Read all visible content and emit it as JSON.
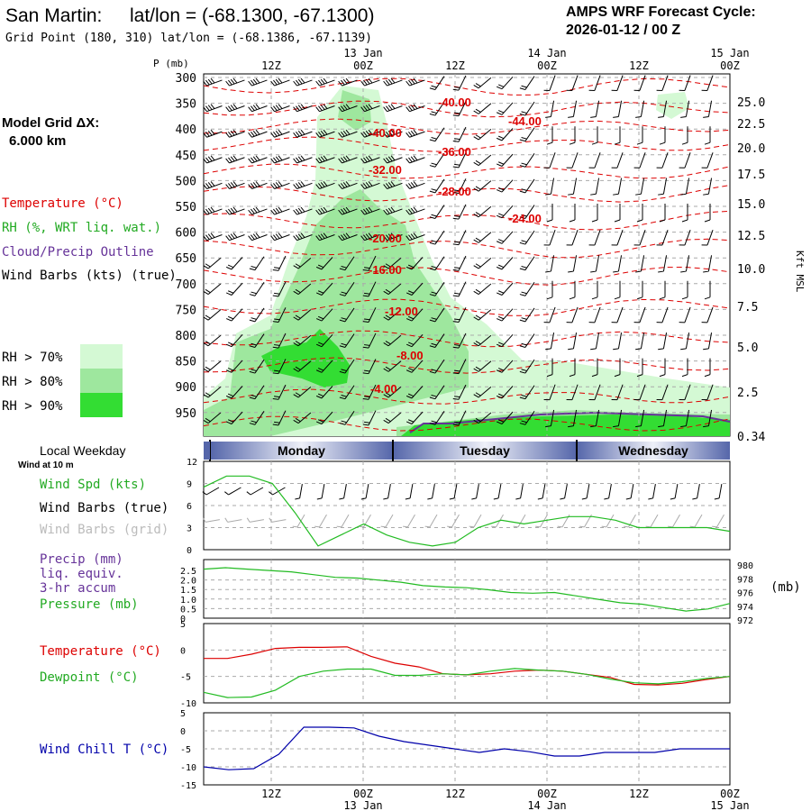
{
  "header": {
    "station": "San Martin:",
    "latlon": "lat/lon = (-68.1300, -67.1300)",
    "grid_point": "Grid Point (180, 310) lat/lon = (-68.1386, -67.1139)",
    "cycle_title": "AMPS WRF Forecast Cycle:",
    "cycle_value": "2026-01-12 / 00  Z"
  },
  "left": {
    "model_grid_label": "Model Grid ΔX:",
    "model_grid_value": "6.000 km",
    "legend_temperature": "Temperature (°C)",
    "legend_rh": "RH (%, WRT liq. wat.)",
    "legend_cloud": "Cloud/Precip Outline",
    "legend_wind": "Wind Barbs (kts) (true)",
    "rh70": "RH > 70%",
    "rh80": "RH > 80%",
    "rh90": "RH > 90%",
    "local_weekday": "Local Weekday",
    "wind_at_10m": "Wind at 10 m",
    "wind_spd_label": "Wind Spd (kts)",
    "wind_barbs_true_label": "Wind Barbs (true)",
    "wind_barbs_grid_label": "Wind Barbs (grid)",
    "precip_label_1": "Precip (mm)",
    "precip_label_2": "liq. equiv.",
    "precip_label_3": "3-hr accum",
    "pressure_label": "Pressure (mb)",
    "temperature_label": "Temperature (°C)",
    "dewpoint_label": "Dewpoint (°C)",
    "windchill_label": "Wind Chill T (°C)"
  },
  "colors": {
    "rh70": "#d4f9d4",
    "rh80": "#9ee79e",
    "rh90": "#33dd33",
    "temperature": "#dd0000",
    "green_line": "#22bb22",
    "cloud_outline": "#663399",
    "windchill": "#0000aa",
    "day_band_dark": "#5566aa",
    "grid": "#aaaaaa"
  },
  "time_axis": {
    "top_date_labels": [
      "13 Jan",
      "14 Jan",
      "15 Jan"
    ],
    "top_time_labels": [
      "12Z",
      "00Z",
      "12Z",
      "00Z",
      "12Z",
      "00Z"
    ],
    "bottom_time_labels": [
      "12Z",
      "00Z",
      "12Z",
      "00Z",
      "12Z",
      "00Z"
    ],
    "bottom_date_labels": [
      "13 Jan",
      "14 Jan",
      "15 Jan"
    ],
    "days": [
      "Monday",
      "Tuesday",
      "Wednesday"
    ]
  },
  "chart_data": [
    {
      "type": "heatmap",
      "y_axis_label": "P (mb)",
      "pressure_levels": [
        "300",
        "350",
        "400",
        "450",
        "500",
        "550",
        "600",
        "650",
        "700",
        "750",
        "800",
        "850",
        "900",
        "950"
      ],
      "right_axis_label": "Kft MSL",
      "height_ticks": [
        "25.0",
        "22.5",
        "20.0",
        "17.5",
        "15.0",
        "12.5",
        "10.0",
        "7.5",
        "5.0",
        "2.5",
        "0.34"
      ],
      "isotherm_labels": [
        "-40.00",
        "-44.00",
        "-40.00",
        "-36.00",
        "-32.00",
        "-28.00",
        "-24.00",
        "-20.00",
        "-16.00",
        "-12.00",
        "-8.00",
        "-4.00"
      ]
    },
    {
      "type": "line",
      "y_ticks": [
        "12",
        "9",
        "6",
        "3",
        "0"
      ],
      "ylim": [
        0,
        12
      ],
      "wind_speed_kts": [
        8.5,
        10,
        10,
        9,
        5,
        0.5,
        2,
        3.5,
        2,
        1,
        0.5,
        1,
        3,
        4,
        3.5,
        4,
        4.5,
        4.5,
        4,
        3,
        3,
        3,
        3,
        2.5
      ]
    },
    {
      "type": "line",
      "y_ticks_left": [
        "2.5",
        "2.0",
        "1.5",
        "1.0",
        "0.5",
        "0"
      ],
      "y_ticks_right": [
        "980",
        "978",
        "976",
        "974",
        "972"
      ],
      "right_unit": "(mb)",
      "pressure_mb": [
        979.4,
        979.6,
        979.4,
        979.2,
        979.0,
        978.6,
        978.2,
        978.1,
        977.8,
        977.5,
        977.0,
        976.8,
        976.7,
        976.4,
        976.0,
        975.9,
        976.0,
        975.5,
        975.0,
        974.5,
        974.3,
        973.8,
        973.3,
        973.6,
        974.4
      ]
    },
    {
      "type": "line",
      "y_ticks": [
        "5",
        "0",
        "-5",
        "-10"
      ],
      "ylim": [
        -10,
        5
      ],
      "temperature_c": [
        -1.6,
        -1.6,
        -0.8,
        0.3,
        0.5,
        0.5,
        0.6,
        -1.2,
        -2.5,
        -3.2,
        -4.5,
        -4.7,
        -4.5,
        -4.0,
        -3.8,
        -4.0,
        -4.6,
        -5.2,
        -6.5,
        -6.6,
        -6.3,
        -5.6,
        -5.0
      ],
      "dewpoint_c": [
        -8.0,
        -9.0,
        -8.9,
        -7.6,
        -5.0,
        -4.0,
        -3.6,
        -3.6,
        -4.8,
        -4.8,
        -4.5,
        -4.7,
        -4.0,
        -3.5,
        -3.8,
        -4.0,
        -4.6,
        -5.5,
        -6.2,
        -6.4,
        -6.0,
        -5.4,
        -5.0
      ]
    },
    {
      "type": "line",
      "y_ticks": [
        "5",
        "0",
        "-5",
        "-10",
        "-15"
      ],
      "ylim": [
        -15,
        5
      ],
      "wind_chill_c": [
        -10.0,
        -10.8,
        -10.5,
        -6.5,
        1.0,
        1.0,
        0.8,
        -1.5,
        -3.0,
        -4.0,
        -5.0,
        -6.0,
        -5.0,
        -5.8,
        -7.0,
        -7.0,
        -6.0,
        -6.0,
        -6.0,
        -5.0,
        -5.0,
        -5.0
      ]
    }
  ]
}
